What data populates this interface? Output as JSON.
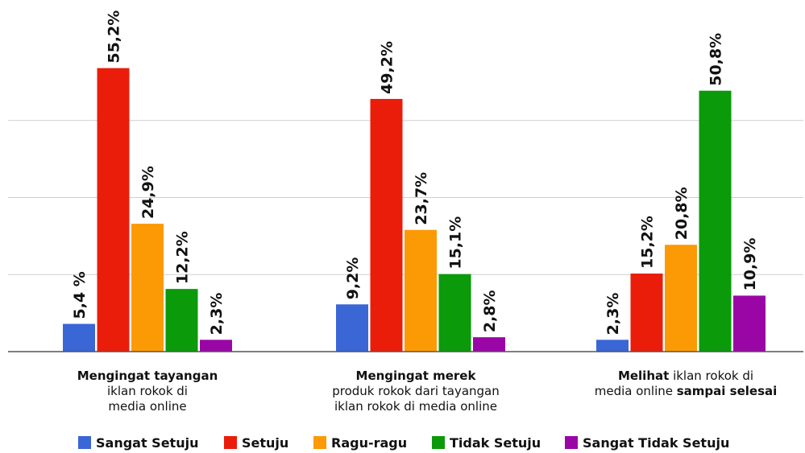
{
  "chart_data": {
    "type": "bar",
    "ylim": [
      0,
      60
    ],
    "grid": true,
    "legend_position": "bottom",
    "categories": [
      {
        "lines": [
          [
            {
              "text": "Mengingat tayangan",
              "bold": true
            }
          ],
          [
            {
              "text": "iklan rokok di",
              "bold": false
            }
          ],
          [
            {
              "text": "media online",
              "bold": false
            }
          ]
        ]
      },
      {
        "lines": [
          [
            {
              "text": "Mengingat merek",
              "bold": true
            }
          ],
          [
            {
              "text": "produk rokok dari tayangan",
              "bold": false
            }
          ],
          [
            {
              "text": "iklan rokok di media online",
              "bold": false
            }
          ]
        ]
      },
      {
        "lines": [
          [
            {
              "text": "Melihat",
              "bold": true
            },
            {
              "text": " iklan rokok di",
              "bold": false
            }
          ],
          [
            {
              "text": "media online ",
              "bold": false
            },
            {
              "text": "sampai selesai",
              "bold": true
            }
          ]
        ]
      }
    ],
    "series": [
      {
        "name": "Sangat Setuju",
        "color": "#3a66d6",
        "values": [
          5.4,
          9.2,
          2.3
        ],
        "labels": [
          "5,4 %",
          "9,2%",
          "2,3%"
        ]
      },
      {
        "name": "Setuju",
        "color": "#ea1d0a",
        "values": [
          55.2,
          49.2,
          15.2
        ],
        "labels": [
          "55,2%",
          "49,2%",
          "15,2%"
        ]
      },
      {
        "name": "Ragu-ragu",
        "color": "#fc9a05",
        "values": [
          24.9,
          23.7,
          20.8
        ],
        "labels": [
          "24,9%",
          "23,7%",
          "20,8%"
        ]
      },
      {
        "name": "Tidak Setuju",
        "color": "#0a9a0a",
        "values": [
          12.2,
          15.1,
          50.8
        ],
        "labels": [
          "12,2%",
          "15,1%",
          "50,8%"
        ]
      },
      {
        "name": "Sangat Tidak Setuju",
        "color": "#9a06a6",
        "values": [
          2.3,
          2.8,
          10.9
        ],
        "labels": [
          "2,3%",
          "2,8%",
          "10,9%"
        ]
      }
    ]
  }
}
